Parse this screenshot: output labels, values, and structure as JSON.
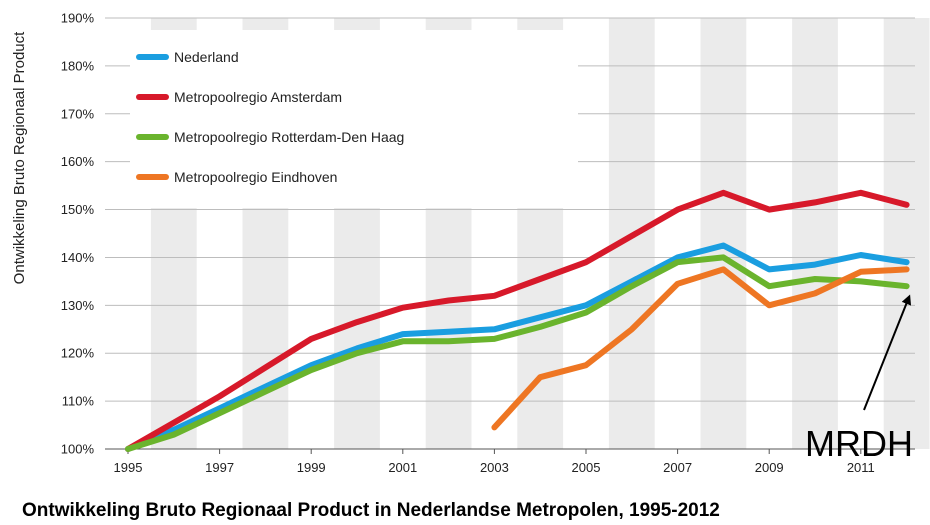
{
  "chart_data": {
    "type": "line",
    "title": "Ontwikkeling Bruto Regionaal Product in Nederlandse Metropolen, 1995-2012",
    "ylabel": "Ontwikkeling Bruto Regionaal Product",
    "xlabel": "",
    "xlim": [
      1995,
      2012
    ],
    "ylim": [
      100,
      190
    ],
    "x_tick_labels": [
      "1995",
      "1997",
      "1999",
      "2001",
      "2003",
      "2005",
      "2007",
      "2009",
      "2011"
    ],
    "y_ticks": [
      100,
      110,
      120,
      130,
      140,
      150,
      160,
      170,
      180,
      190
    ],
    "y_tick_labels": [
      "100%",
      "110%",
      "120%",
      "130%",
      "140%",
      "150%",
      "160%",
      "170%",
      "180%",
      "190%"
    ],
    "grid": "horizontal",
    "background_bands": "alternating grey vertical bands per year",
    "legend_position": "top-left",
    "series": [
      {
        "name": "Nederland",
        "color": "#1a9ee0",
        "x": [
          1995,
          1996,
          1997,
          1998,
          1999,
          2000,
          2001,
          2002,
          2003,
          2004,
          2005,
          2006,
          2007,
          2008,
          2009,
          2010,
          2011,
          2012
        ],
        "values": [
          100,
          104,
          108.5,
          113,
          117.5,
          121,
          124,
          124.5,
          125,
          127.5,
          130,
          135,
          140,
          142.5,
          137.5,
          138.5,
          140.5,
          139
        ]
      },
      {
        "name": "Metropoolregio Amsterdam",
        "color": "#d7192a",
        "x": [
          1995,
          1996,
          1997,
          1998,
          1999,
          2000,
          2001,
          2002,
          2003,
          2004,
          2005,
          2006,
          2007,
          2008,
          2009,
          2010,
          2011,
          2012
        ],
        "values": [
          100,
          105.5,
          111,
          117,
          123,
          126.5,
          129.5,
          131,
          132,
          135.5,
          139,
          144.5,
          150,
          153.5,
          150,
          151.5,
          153.5,
          151
        ]
      },
      {
        "name": "Metropoolregio Rotterdam-Den Haag",
        "color": "#6ab42d",
        "x": [
          1995,
          1996,
          1997,
          1998,
          1999,
          2000,
          2001,
          2002,
          2003,
          2004,
          2005,
          2006,
          2007,
          2008,
          2009,
          2010,
          2011,
          2012
        ],
        "values": [
          100,
          103,
          107.5,
          112,
          116.5,
          120,
          122.5,
          122.5,
          123,
          125.5,
          128.5,
          134,
          139,
          140,
          134,
          135.5,
          135,
          134
        ]
      },
      {
        "name": "Metropoolregio Eindhoven",
        "color": "#ee7623",
        "x": [
          2003,
          2004,
          2005,
          2006,
          2007,
          2008,
          2009,
          2010,
          2011,
          2012
        ],
        "values": [
          104.5,
          115,
          117.5,
          125,
          134.5,
          137.5,
          130,
          132.5,
          137,
          137.5
        ]
      }
    ],
    "annotations": [
      {
        "text": "MRDH",
        "target_x": 2012,
        "target_y": 134
      }
    ]
  }
}
